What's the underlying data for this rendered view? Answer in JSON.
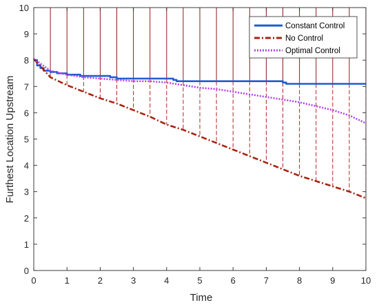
{
  "chart_data": {
    "type": "line",
    "xlabel": "Time",
    "ylabel": "Furthest Location Upstream",
    "xlim": [
      0,
      10
    ],
    "ylim": [
      0,
      10
    ],
    "xticks": [
      "0",
      "1",
      "2",
      "3",
      "4",
      "5",
      "6",
      "7",
      "8",
      "9",
      "10"
    ],
    "yticks": [
      "0",
      "1",
      "2",
      "3",
      "4",
      "5",
      "6",
      "7",
      "8",
      "9",
      "10"
    ],
    "grid": false,
    "legend_position": "top-right",
    "series": [
      {
        "name": "Constant Control",
        "color": "#1f5bd1",
        "style": "solid",
        "x": [
          0,
          0.1,
          0.2,
          0.3,
          0.5,
          0.7,
          1.0,
          1.4,
          2.3,
          2.5,
          4.2,
          4.3,
          7.5,
          7.6,
          10
        ],
        "y": [
          8.0,
          7.8,
          7.7,
          7.6,
          7.55,
          7.5,
          7.45,
          7.4,
          7.35,
          7.3,
          7.25,
          7.2,
          7.15,
          7.1,
          7.1
        ]
      },
      {
        "name": "No Control",
        "color": "#a82410",
        "style": "dashed",
        "x": [
          0,
          0.5,
          1,
          1.5,
          2,
          2.5,
          3,
          3.5,
          4,
          4.5,
          5,
          5.5,
          6,
          6.5,
          7,
          7.5,
          8,
          8.5,
          9,
          9.5,
          10
        ],
        "y": [
          8.05,
          7.35,
          7.05,
          6.8,
          6.55,
          6.35,
          6.1,
          5.85,
          5.55,
          5.35,
          5.1,
          4.85,
          4.6,
          4.35,
          4.1,
          3.85,
          3.6,
          3.4,
          3.2,
          3.0,
          2.75
        ]
      },
      {
        "name": "Optimal Control",
        "color": "#b53df2",
        "style": "dotted",
        "x": [
          0,
          0.5,
          1,
          1.5,
          2,
          2.5,
          3,
          3.5,
          4,
          4.5,
          5,
          5.5,
          6,
          6.5,
          7,
          7.5,
          8,
          8.5,
          9,
          9.5,
          10
        ],
        "y": [
          8.05,
          7.6,
          7.45,
          7.35,
          7.3,
          7.25,
          7.2,
          7.2,
          7.15,
          7.05,
          6.95,
          6.9,
          6.8,
          6.7,
          6.6,
          6.5,
          6.4,
          6.25,
          6.1,
          5.9,
          5.6
        ]
      }
    ],
    "vertical_markers": {
      "solid_color": "#8b1a1a",
      "dashed_color": "#b22222",
      "x": [
        0.5,
        1,
        1.5,
        2,
        2.5,
        3,
        3.5,
        4,
        4.5,
        5,
        5.5,
        6,
        6.5,
        7,
        7.5,
        8,
        8.5,
        9,
        9.5,
        10
      ]
    }
  }
}
